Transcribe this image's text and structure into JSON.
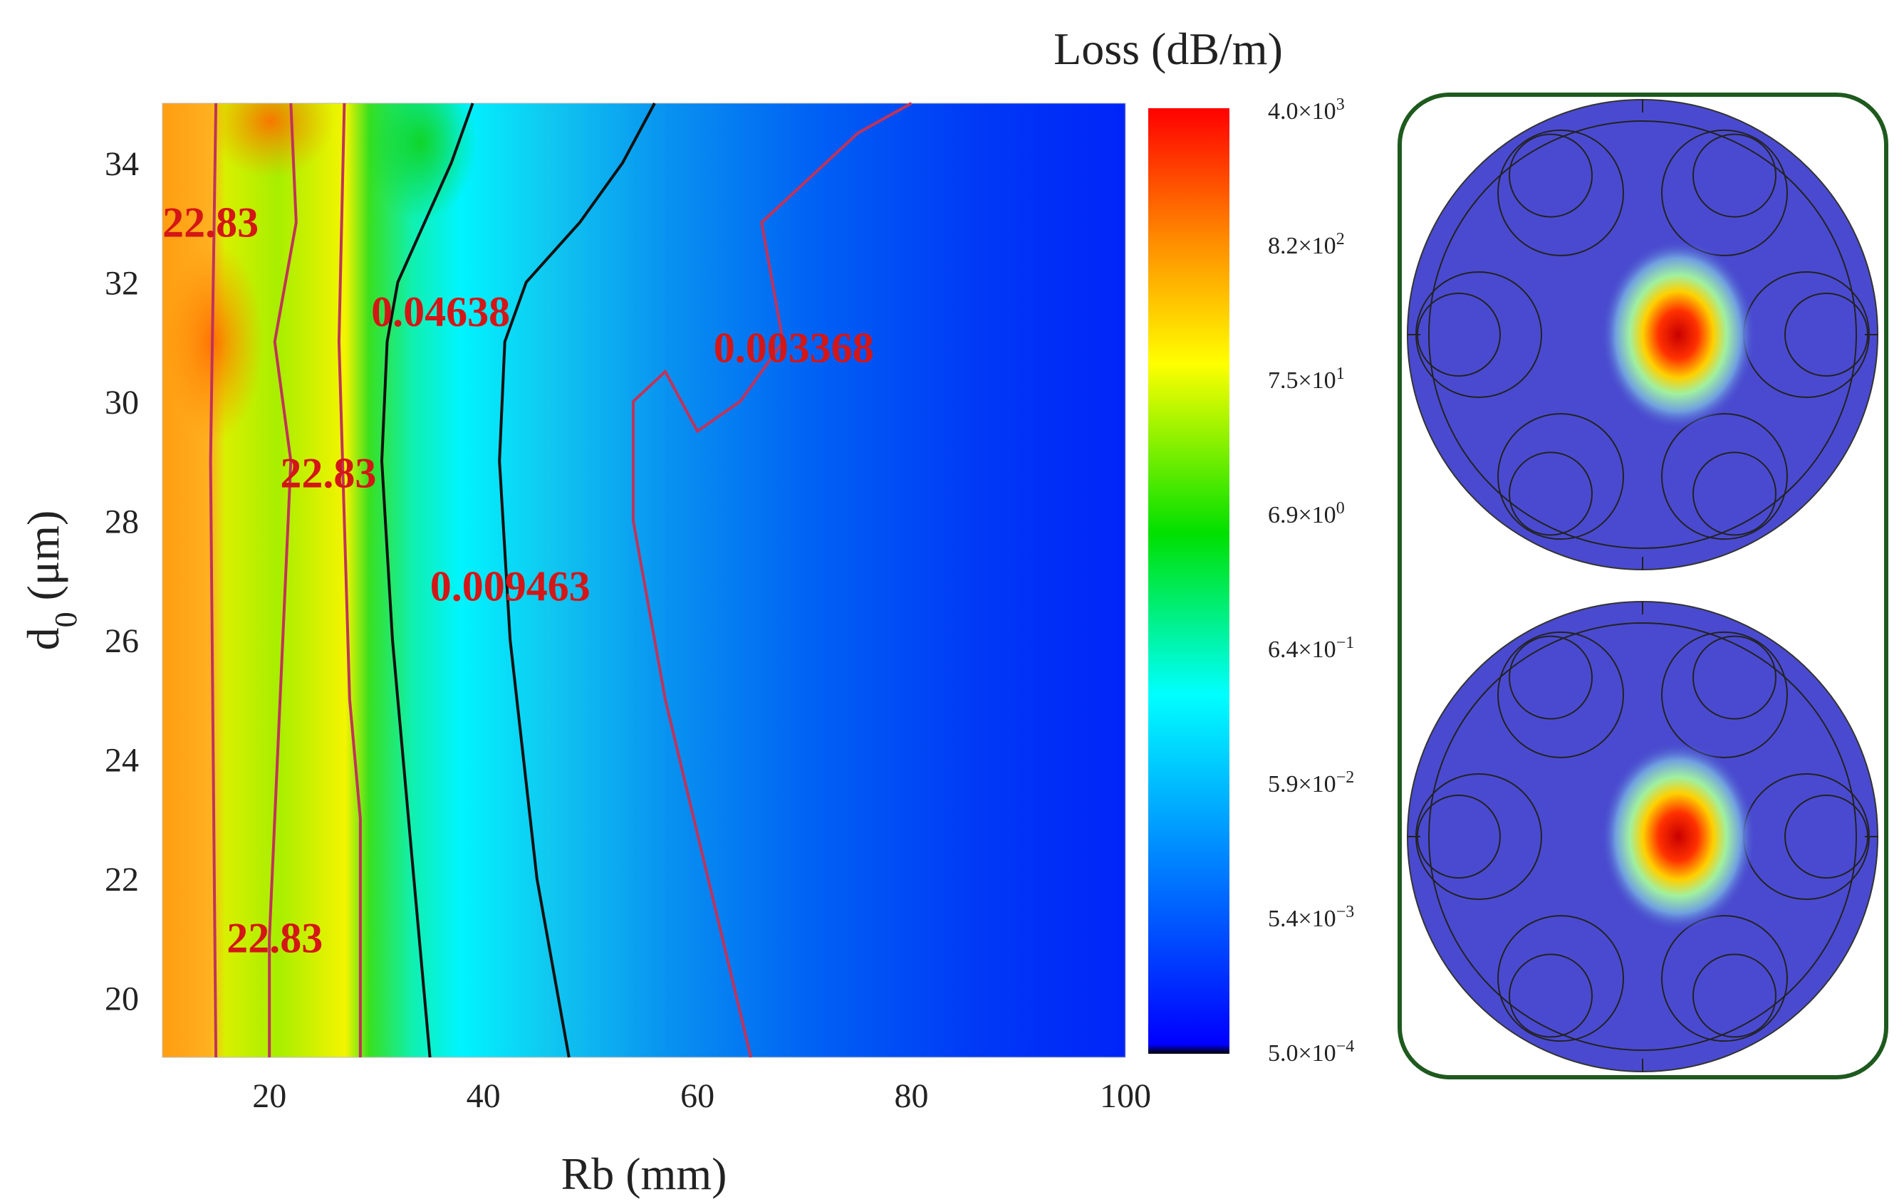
{
  "chart_data": {
    "type": "heatmap",
    "title": "",
    "xlabel": "Rb (mm)",
    "ylabel": "d",
    "ylabel_sub": "0",
    "ylabel_unit": " (μm)",
    "xlim": [
      10,
      100
    ],
    "ylim": [
      19,
      35
    ],
    "xticks": [
      "20",
      "40",
      "60",
      "80",
      "100"
    ],
    "yticks": [
      "20",
      "22",
      "24",
      "26",
      "28",
      "30",
      "32",
      "34"
    ],
    "colorbar": {
      "title": "Loss (dB/m)",
      "ticks": [
        {
          "m": "4.0×10",
          "e": "3"
        },
        {
          "m": "8.2×10",
          "e": "2"
        },
        {
          "m": "7.5×10",
          "e": "1"
        },
        {
          "m": "6.9×10",
          "e": "0"
        },
        {
          "m": "6.4×10",
          "e": "−1"
        },
        {
          "m": "5.9×10",
          "e": "−2"
        },
        {
          "m": "5.4×10",
          "e": "−3"
        },
        {
          "m": "5.0×10",
          "e": "−4"
        }
      ]
    },
    "contours": [
      {
        "level": "22.83",
        "color": "#c0335a",
        "points": [
          [
            15,
            19
          ],
          [
            14.5,
            29
          ],
          [
            15,
            35
          ]
        ]
      },
      {
        "level": "22.83",
        "color": "#c0335a",
        "points": [
          [
            20,
            19
          ],
          [
            20,
            21
          ],
          [
            21,
            25
          ],
          [
            22,
            29
          ],
          [
            20.5,
            31
          ],
          [
            22.5,
            33
          ],
          [
            22,
            35
          ]
        ]
      },
      {
        "level": "22.83",
        "color": "#c0335a",
        "points": [
          [
            28.5,
            19
          ],
          [
            28.5,
            23
          ],
          [
            27.5,
            25
          ],
          [
            26.5,
            31
          ],
          [
            27,
            35
          ]
        ]
      },
      {
        "level": "0.04638",
        "color": "#111111",
        "points": [
          [
            35,
            19
          ],
          [
            33.5,
            22
          ],
          [
            31.5,
            26
          ],
          [
            30.5,
            29
          ],
          [
            31,
            31
          ],
          [
            32,
            32
          ],
          [
            37,
            34
          ],
          [
            39,
            35
          ]
        ]
      },
      {
        "level": "0.009463",
        "color": "#111111",
        "points": [
          [
            48,
            19
          ],
          [
            45,
            22
          ],
          [
            42.5,
            26
          ],
          [
            41.5,
            29
          ],
          [
            42,
            31
          ],
          [
            44,
            32
          ],
          [
            49,
            33
          ],
          [
            53,
            34
          ],
          [
            56,
            35
          ]
        ]
      },
      {
        "level": "0.003368",
        "color": "#c0335a",
        "points": [
          [
            65,
            19
          ],
          [
            61,
            22
          ],
          [
            57,
            25
          ],
          [
            54,
            28
          ],
          [
            54,
            30
          ],
          [
            57,
            30.5
          ],
          [
            60,
            29.5
          ],
          [
            64,
            30
          ],
          [
            68,
            31
          ],
          [
            66,
            33
          ],
          [
            75,
            34.5
          ],
          [
            80,
            35
          ]
        ]
      }
    ],
    "contour_labels": [
      {
        "text": "22.83",
        "x": 14.5,
        "y": 33
      },
      {
        "text": "0.04638",
        "x": 36,
        "y": 31.5
      },
      {
        "text": "22.83",
        "x": 25.5,
        "y": 28.8
      },
      {
        "text": "0.009463",
        "x": 42.5,
        "y": 26.9
      },
      {
        "text": "0.003368",
        "x": 69,
        "y": 30.9
      },
      {
        "text": "22.83",
        "x": 20.5,
        "y": 21
      }
    ]
  },
  "insets": [
    {
      "name": "mode-profile-top"
    },
    {
      "name": "mode-profile-bottom"
    }
  ]
}
